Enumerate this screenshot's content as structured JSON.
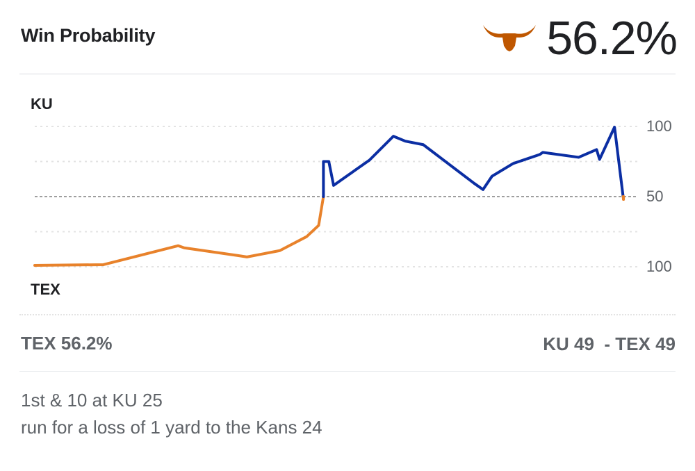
{
  "header": {
    "title": "Win Probability",
    "leader_pct": "56.2%",
    "leader_logo": "longhorn-icon",
    "logo_color": "#bf5700"
  },
  "chart_data": {
    "type": "line",
    "title": "Win Probability",
    "top_team": "KU",
    "bottom_team": "TEX",
    "y_tick_labels": [
      "100",
      "50",
      "100"
    ],
    "ylim": [
      -100,
      100
    ],
    "x_unit": "play index",
    "xlim": [
      0,
      100
    ],
    "grid": true,
    "colors": {
      "KU": "#0b2ea3",
      "TEX": "#e8822b",
      "baseline": "#9e9e9e",
      "grid": "#e3e3e3"
    },
    "series": [
      {
        "name": "win-probability-margin",
        "note": "positive = KU favored, negative = TEX favored (percent above 50)",
        "x": [
          0,
          11.5,
          24,
          25,
          34,
          35.5,
          41,
          45.5,
          47.5,
          48.2,
          48.3,
          48.3,
          49.2,
          50,
          56,
          60,
          62,
          65,
          73.5,
          75,
          76.5,
          80,
          84.5,
          85,
          91,
          94,
          94.5,
          97,
          98.5
        ],
        "y": [
          -98,
          -97,
          -70,
          -73,
          -84,
          -86,
          -77,
          -57,
          -41,
          -5,
          0,
          50,
          50,
          16,
          52,
          86,
          79,
          74,
          19,
          10,
          29,
          47,
          60,
          63,
          56,
          67,
          53,
          99,
          -4
        ]
      }
    ]
  },
  "status": {
    "left": "TEX 56.2%",
    "right": "KU 49  - TEX 49"
  },
  "play": {
    "down": "1st & 10 at KU 25",
    "description": "run for a loss of 1 yard to the Kans 24"
  }
}
